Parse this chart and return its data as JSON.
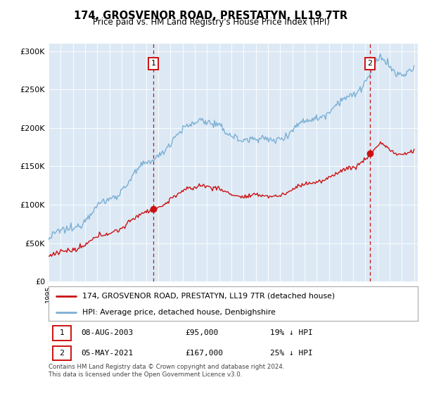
{
  "title": "174, GROSVENOR ROAD, PRESTATYN, LL19 7TR",
  "subtitle": "Price paid vs. HM Land Registry's House Price Index (HPI)",
  "red_label": "174, GROSVENOR ROAD, PRESTATYN, LL19 7TR (detached house)",
  "blue_label": "HPI: Average price, detached house, Denbighshire",
  "annotation1": {
    "num": "1",
    "date": "08-AUG-2003",
    "price": "£95,000",
    "pct": "19% ↓ HPI"
  },
  "annotation2": {
    "num": "2",
    "date": "05-MAY-2021",
    "price": "£167,000",
    "pct": "25% ↓ HPI"
  },
  "footer": "Contains HM Land Registry data © Crown copyright and database right 2024.\nThis data is licensed under the Open Government Licence v3.0.",
  "ylim": [
    0,
    310000
  ],
  "yticks": [
    0,
    50000,
    100000,
    150000,
    200000,
    250000,
    300000
  ],
  "ytick_labels": [
    "£0",
    "£50K",
    "£100K",
    "£150K",
    "£200K",
    "£250K",
    "£300K"
  ],
  "bg_color": "#dce9f5",
  "line_color_blue": "#7bafd4",
  "line_color_red": "#cc1111",
  "dot_color": "#cc1111",
  "vline_color": "#cc1111",
  "annotation_box_edge": "#cc1111",
  "grid_color": "#ffffff",
  "annotation1_year": 2003.6,
  "annotation2_year": 2021.37,
  "sale1_price": 95000,
  "sale2_price": 167000,
  "xlim_start": 1995,
  "xlim_end": 2025.3
}
